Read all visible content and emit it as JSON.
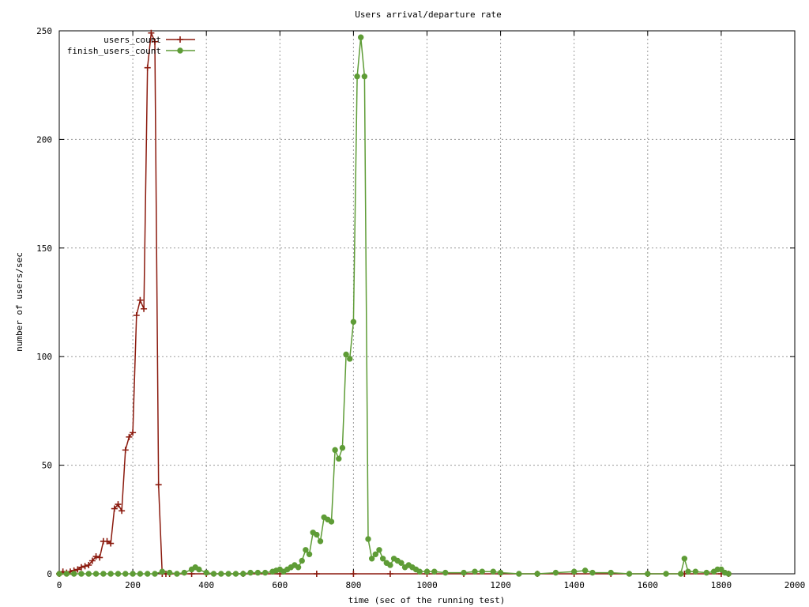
{
  "chart_data": {
    "type": "line",
    "title": "Users arrival/departure rate",
    "xlabel": "time (sec of the running test)",
    "ylabel": "number of users/sec",
    "xlim": [
      0,
      2000
    ],
    "ylim": [
      0,
      250
    ],
    "x_ticks": [
      "0",
      "200",
      "400",
      "600",
      "800",
      "1000",
      "1200",
      "1400",
      "1600",
      "1800",
      "2000"
    ],
    "y_ticks": [
      "0",
      "50",
      "100",
      "150",
      "200",
      "250"
    ],
    "grid": true,
    "legend_position": "top-left",
    "series": [
      {
        "name": "users_count",
        "color": "#8b1a0e",
        "marker": "plus",
        "points": [
          [
            0,
            0
          ],
          [
            10,
            1
          ],
          [
            20,
            0.5
          ],
          [
            30,
            1
          ],
          [
            40,
            1.5
          ],
          [
            50,
            2
          ],
          [
            60,
            3
          ],
          [
            70,
            3.5
          ],
          [
            80,
            4
          ],
          [
            90,
            6
          ],
          [
            100,
            8
          ],
          [
            110,
            7.5
          ],
          [
            120,
            15
          ],
          [
            130,
            15
          ],
          [
            140,
            14
          ],
          [
            150,
            30
          ],
          [
            160,
            32
          ],
          [
            170,
            29
          ],
          [
            180,
            57
          ],
          [
            190,
            63
          ],
          [
            200,
            65
          ],
          [
            210,
            119
          ],
          [
            220,
            126
          ],
          [
            230,
            122
          ],
          [
            240,
            233
          ],
          [
            250,
            249
          ],
          [
            260,
            245
          ],
          [
            270,
            41
          ],
          [
            280,
            0
          ],
          [
            290,
            0
          ],
          [
            300,
            0
          ],
          [
            360,
            0
          ],
          [
            400,
            0
          ],
          [
            500,
            0
          ],
          [
            600,
            0
          ],
          [
            700,
            0
          ],
          [
            800,
            0
          ],
          [
            900,
            0
          ],
          [
            1000,
            0
          ],
          [
            1100,
            0
          ],
          [
            1200,
            0
          ],
          [
            1300,
            0
          ],
          [
            1400,
            0
          ],
          [
            1500,
            0
          ],
          [
            1600,
            0
          ],
          [
            1700,
            0
          ],
          [
            1800,
            0
          ],
          [
            1820,
            0
          ]
        ]
      },
      {
        "name": "finish_users_count",
        "color": "#5e9c36",
        "marker": "circle",
        "points": [
          [
            0,
            0
          ],
          [
            20,
            0
          ],
          [
            40,
            0
          ],
          [
            60,
            0
          ],
          [
            80,
            0
          ],
          [
            100,
            0
          ],
          [
            120,
            0
          ],
          [
            140,
            0
          ],
          [
            160,
            0
          ],
          [
            180,
            0
          ],
          [
            200,
            0
          ],
          [
            220,
            0
          ],
          [
            240,
            0
          ],
          [
            260,
            0
          ],
          [
            280,
            1
          ],
          [
            300,
            0.5
          ],
          [
            320,
            0
          ],
          [
            340,
            0.5
          ],
          [
            360,
            2
          ],
          [
            370,
            3
          ],
          [
            380,
            2
          ],
          [
            400,
            0.5
          ],
          [
            420,
            0
          ],
          [
            440,
            0
          ],
          [
            460,
            0
          ],
          [
            480,
            0
          ],
          [
            500,
            0
          ],
          [
            520,
            0.5
          ],
          [
            540,
            0.5
          ],
          [
            560,
            0.5
          ],
          [
            580,
            1
          ],
          [
            590,
            1.5
          ],
          [
            600,
            2
          ],
          [
            610,
            1
          ],
          [
            620,
            2
          ],
          [
            630,
            3
          ],
          [
            640,
            4
          ],
          [
            650,
            3
          ],
          [
            660,
            6
          ],
          [
            670,
            11
          ],
          [
            680,
            9
          ],
          [
            690,
            19
          ],
          [
            700,
            18
          ],
          [
            710,
            15
          ],
          [
            720,
            26
          ],
          [
            730,
            25
          ],
          [
            740,
            24
          ],
          [
            750,
            57
          ],
          [
            760,
            53
          ],
          [
            770,
            58
          ],
          [
            780,
            101
          ],
          [
            790,
            99
          ],
          [
            800,
            116
          ],
          [
            810,
            229
          ],
          [
            820,
            247
          ],
          [
            830,
            229
          ],
          [
            840,
            16
          ],
          [
            850,
            7
          ],
          [
            860,
            9
          ],
          [
            870,
            11
          ],
          [
            880,
            7
          ],
          [
            890,
            5
          ],
          [
            900,
            4
          ],
          [
            910,
            7
          ],
          [
            920,
            6
          ],
          [
            930,
            5
          ],
          [
            940,
            3
          ],
          [
            950,
            4
          ],
          [
            960,
            3
          ],
          [
            970,
            2
          ],
          [
            980,
            1
          ],
          [
            1000,
            1
          ],
          [
            1020,
            1
          ],
          [
            1050,
            0.5
          ],
          [
            1100,
            0.5
          ],
          [
            1130,
            1
          ],
          [
            1150,
            1
          ],
          [
            1180,
            1
          ],
          [
            1200,
            0.5
          ],
          [
            1250,
            0
          ],
          [
            1300,
            0
          ],
          [
            1350,
            0.5
          ],
          [
            1400,
            1
          ],
          [
            1430,
            1.5
          ],
          [
            1450,
            0.5
          ],
          [
            1500,
            0.5
          ],
          [
            1550,
            0
          ],
          [
            1600,
            0
          ],
          [
            1650,
            0
          ],
          [
            1690,
            0
          ],
          [
            1700,
            7
          ],
          [
            1710,
            1
          ],
          [
            1730,
            1
          ],
          [
            1760,
            0.5
          ],
          [
            1780,
            1
          ],
          [
            1790,
            2
          ],
          [
            1800,
            2
          ],
          [
            1810,
            0.5
          ],
          [
            1820,
            0
          ]
        ]
      }
    ]
  }
}
